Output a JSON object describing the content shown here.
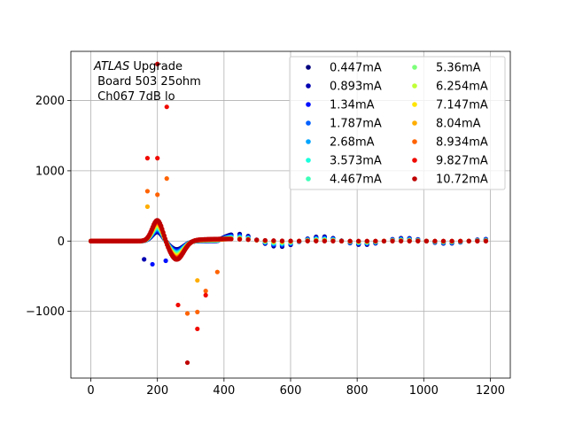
{
  "chart_data": {
    "type": "scatter",
    "title": "",
    "xlabel": "",
    "ylabel": "",
    "xlim": [
      -60,
      1260
    ],
    "ylim": [
      -1950,
      2700
    ],
    "xticks": [
      0,
      200,
      400,
      600,
      800,
      1000,
      1200
    ],
    "yticks": [
      -1000,
      0,
      1000,
      2000
    ],
    "xtick_labels": [
      "0",
      "200",
      "400",
      "600",
      "800",
      "1000",
      "1200"
    ],
    "ytick_labels": [
      "−1000",
      "0",
      "1000",
      "2000"
    ],
    "grid": true,
    "legend_position": "top-right",
    "legend_columns": 2,
    "annotation": {
      "line1_italic": "ATLAS",
      "line1_rest": " Upgrade",
      "line2": " Board 503 25ohm",
      "line3": " Ch067 7dB lo"
    },
    "series": [
      {
        "name": "0.447mA",
        "color": "#00007f"
      },
      {
        "name": "0.893mA",
        "color": "#0000b2"
      },
      {
        "name": "1.34mA",
        "color": "#0010ff"
      },
      {
        "name": "1.787mA",
        "color": "#0060ff"
      },
      {
        "name": "2.68mA",
        "color": "#00a4ff"
      },
      {
        "name": "3.573mA",
        "color": "#19ffdd"
      },
      {
        "name": "4.467mA",
        "color": "#3dffb9"
      },
      {
        "name": "5.36mA",
        "color": "#7dff7a"
      },
      {
        "name": "6.254mA",
        "color": "#c1ff36"
      },
      {
        "name": "7.147mA",
        "color": "#ffe500"
      },
      {
        "name": "8.04mA",
        "color": "#ffae00"
      },
      {
        "name": "8.934mA",
        "color": "#ff6300"
      },
      {
        "name": "9.827mA",
        "color": "#f00a00"
      },
      {
        "name": "10.72mA",
        "color": "#bf0000"
      }
    ]
  }
}
